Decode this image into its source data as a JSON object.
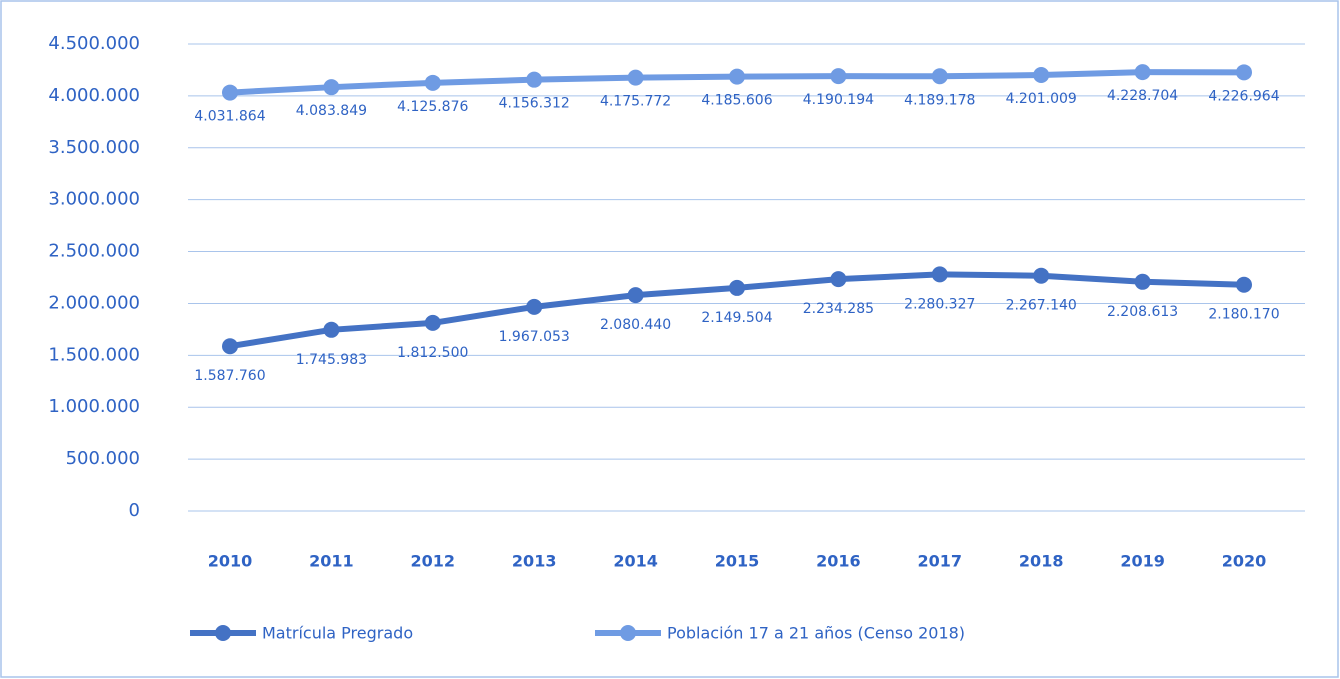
{
  "chart_data": {
    "type": "line",
    "categories": [
      "2010",
      "2011",
      "2012",
      "2013",
      "2014",
      "2015",
      "2016",
      "2017",
      "2018",
      "2019",
      "2020"
    ],
    "series": [
      {
        "name": "Matrícula Pregrado",
        "color": "#4472c4",
        "values": [
          1587760,
          1745983,
          1812500,
          1967053,
          2080440,
          2149504,
          2234285,
          2280327,
          2267140,
          2208613,
          2180170
        ],
        "value_labels": [
          "1.587.760",
          "1.745.983",
          "1.812.500",
          "1.967.053",
          "2.080.440",
          "2.149.504",
          "2.234.285",
          "2.280.327",
          "2.267.140",
          "2.208.613",
          "2.180.170"
        ]
      },
      {
        "name": "Población 17 a 21 años (Censo 2018)",
        "color": "#6f9be3",
        "values": [
          4031864,
          4083849,
          4125876,
          4156312,
          4175772,
          4185606,
          4190194,
          4189178,
          4201009,
          4228704,
          4226964
        ],
        "value_labels": [
          "4.031.864",
          "4.083.849",
          "4.125.876",
          "4.156.312",
          "4.175.772",
          "4.185.606",
          "4.190.194",
          "4.189.178",
          "4.201.009",
          "4.228.704",
          "4.226.964"
        ]
      }
    ],
    "ylim": [
      0,
      4500000
    ],
    "yticks": [
      0,
      {
        "value": 500000,
        "label": "500.000"
      },
      {
        "value": 1000000,
        "label": "1.000.000"
      },
      {
        "value": 1500000,
        "label": "1.500.000"
      },
      {
        "value": 2000000,
        "label": "2.000.000"
      },
      {
        "value": 2500000,
        "label": "2.500.000"
      },
      {
        "value": 3000000,
        "label": "3.000.000"
      },
      {
        "value": 3500000,
        "label": "3.500.000"
      },
      {
        "value": 4000000,
        "label": "4.000.000"
      },
      {
        "value": 4500000,
        "label": "4.500.000"
      }
    ],
    "grid": true,
    "legend": "bottom"
  }
}
